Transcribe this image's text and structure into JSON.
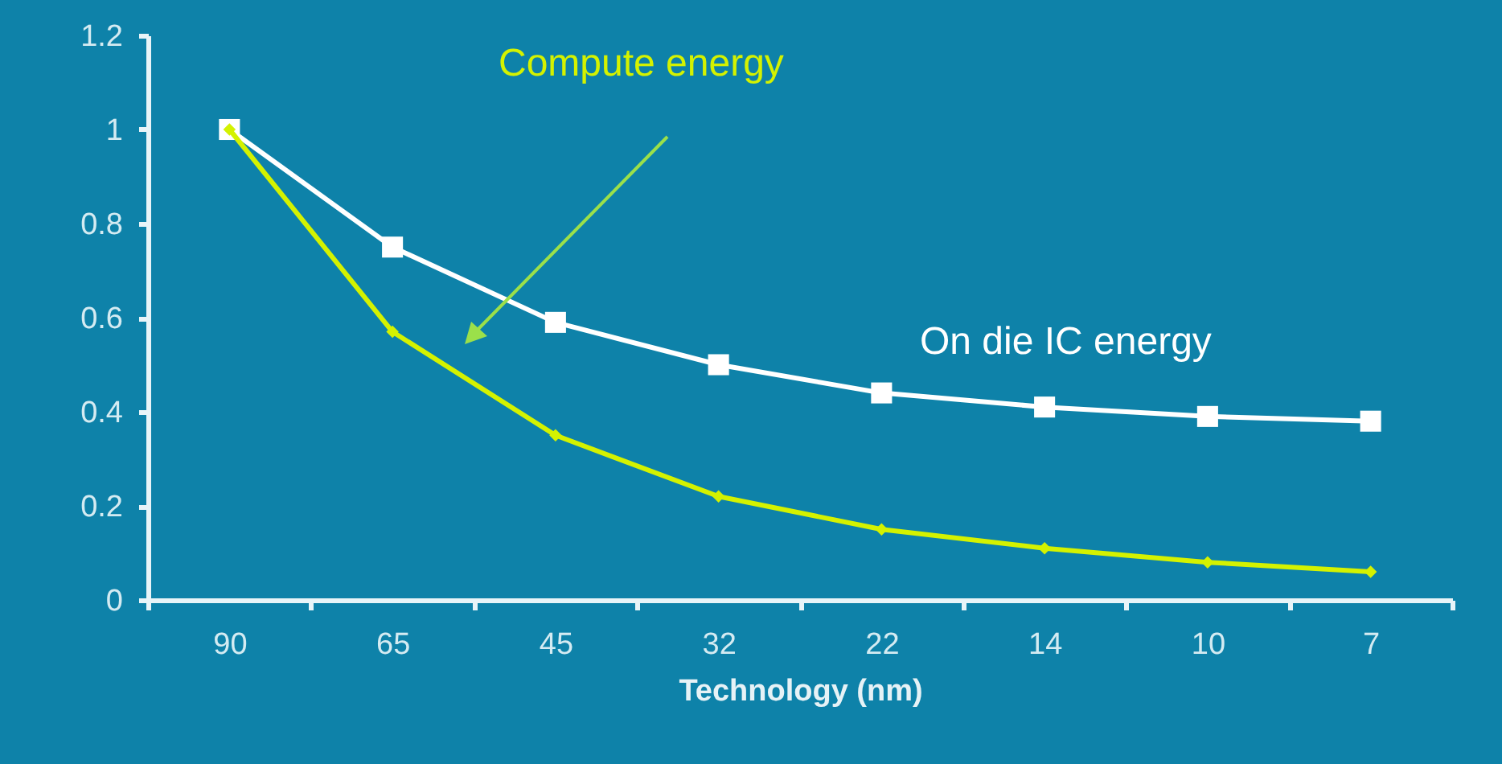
{
  "chart_data": {
    "type": "line",
    "xlabel": "Technology (nm)",
    "categories": [
      "90",
      "65",
      "45",
      "32",
      "22",
      "14",
      "10",
      "7"
    ],
    "ylim": [
      0,
      1.2
    ],
    "yticks": [
      0,
      0.2,
      0.4,
      0.6,
      0.8,
      1,
      1.2
    ],
    "series": [
      {
        "name": "On die IC energy",
        "color": "#ffffff",
        "marker": "square",
        "values": [
          1,
          0.75,
          0.59,
          0.5,
          0.44,
          0.41,
          0.39,
          0.38
        ]
      },
      {
        "name": "Compute energy",
        "color": "#d4f200",
        "marker": "diamond",
        "values": [
          1,
          0.57,
          0.35,
          0.22,
          0.15,
          0.11,
          0.08,
          0.06
        ]
      }
    ]
  }
}
